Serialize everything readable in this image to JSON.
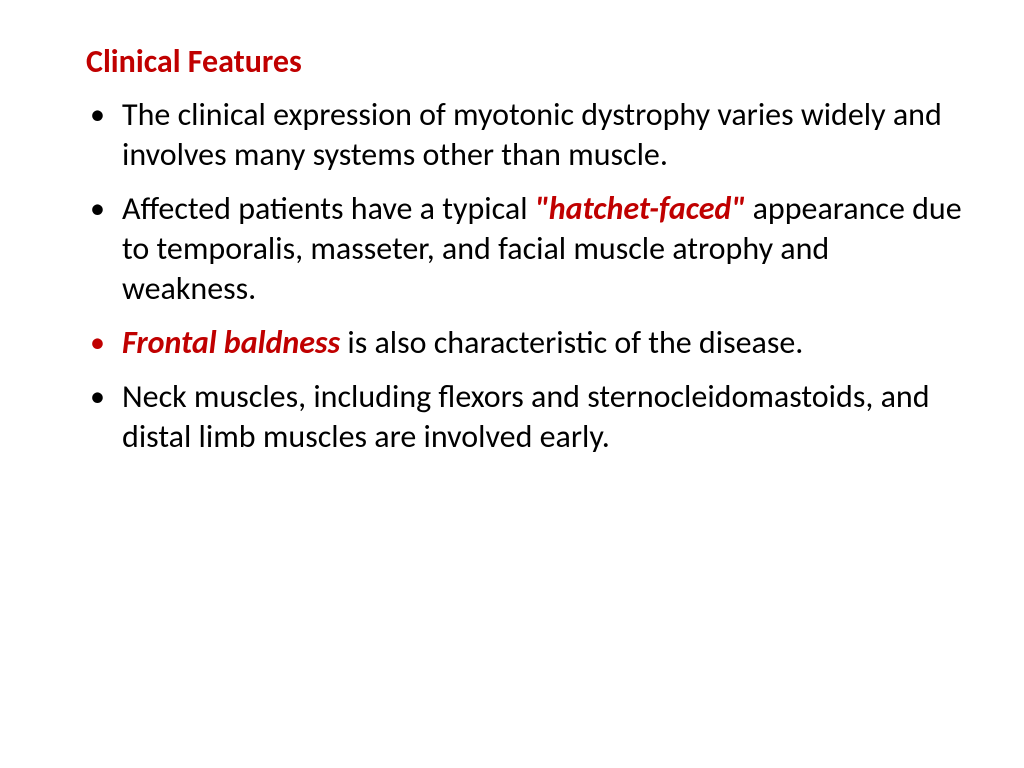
{
  "heading": "Clinical Features",
  "bullets": [
    {
      "pre": "The clinical expression of myotonic dystrophy varies widely and involves many systems other than muscle.",
      "emph": "",
      "post": ""
    },
    {
      "pre": "Affected patients have a typical ",
      "emph": "\"hatchet-faced\"",
      "post": " appearance due to temporalis, masseter, and facial muscle atrophy and weakness."
    },
    {
      "pre": "",
      "emph": "Frontal baldness",
      "post": " is also characteristic of the disease."
    },
    {
      "pre": "Neck muscles, including flexors and sternocleidomastoids, and distal limb muscles are involved early.",
      "emph": "",
      "post": ""
    }
  ],
  "colors": {
    "accent": "#c00000",
    "text": "#000000",
    "background": "#ffffff"
  },
  "typography": {
    "heading_fontsize": 32,
    "heading_weight": 700,
    "body_fontsize": 32,
    "line_height": 1.25,
    "font_family": "Calibri, Segoe UI, Arial, sans-serif"
  }
}
